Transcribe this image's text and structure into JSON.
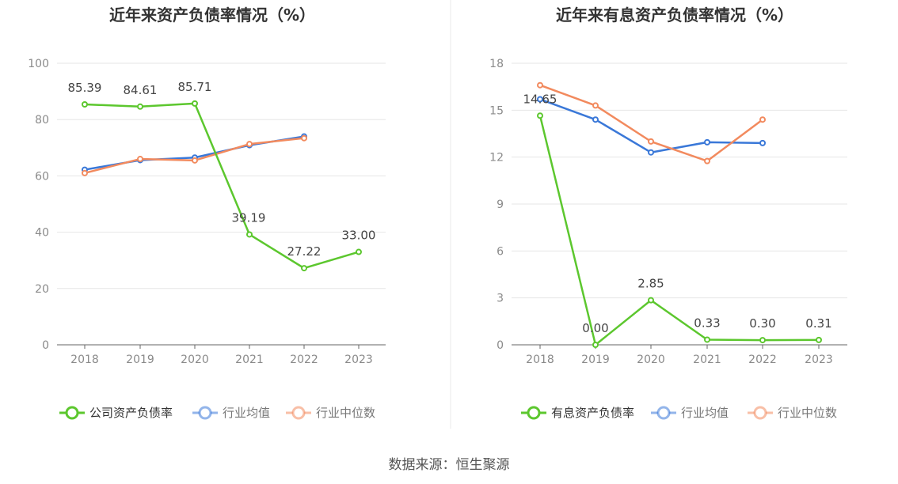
{
  "source_label": "数据来源：恒生聚源",
  "colors": {
    "company": "#5cc72e",
    "avg": "#3a78d8",
    "median": "#f28a5e"
  },
  "chart_data": [
    {
      "type": "line",
      "title": "近年来资产负债率情况（%）",
      "xlabel": "",
      "ylabel": "",
      "x": [
        "2018",
        "2019",
        "2020",
        "2021",
        "2022",
        "2023"
      ],
      "ylim": [
        0,
        100
      ],
      "yticks": [
        0,
        20,
        40,
        60,
        80,
        100
      ],
      "grid": true,
      "legend_position": "bottom",
      "series": [
        {
          "name": "公司资产负债率",
          "values": [
            85.39,
            84.61,
            85.71,
            39.19,
            27.22,
            33.0
          ],
          "labels": [
            "85.39",
            "84.61",
            "85.71",
            "39.19",
            "27.22",
            "33.00"
          ]
        },
        {
          "name": "行业均值",
          "values": [
            62.2,
            65.6,
            66.5,
            70.9,
            74.0,
            null
          ]
        },
        {
          "name": "行业中位数",
          "values": [
            61.0,
            66.0,
            65.5,
            71.3,
            73.4,
            null
          ]
        }
      ]
    },
    {
      "type": "line",
      "title": "近年来有息资产负债率情况（%）",
      "xlabel": "",
      "ylabel": "",
      "x": [
        "2018",
        "2019",
        "2020",
        "2021",
        "2022",
        "2023"
      ],
      "ylim": [
        0,
        18
      ],
      "yticks": [
        0,
        3,
        6,
        9,
        12,
        15,
        18
      ],
      "grid": true,
      "legend_position": "bottom",
      "series": [
        {
          "name": "有息资产负债率",
          "values": [
            14.65,
            0.0,
            2.85,
            0.33,
            0.3,
            0.31
          ],
          "labels": [
            "14.65",
            "0.00",
            "2.85",
            "0.33",
            "0.30",
            "0.31"
          ]
        },
        {
          "name": "行业均值",
          "values": [
            15.7,
            14.4,
            12.3,
            12.95,
            12.9,
            null
          ]
        },
        {
          "name": "行业中位数",
          "values": [
            16.6,
            15.3,
            13.0,
            11.75,
            14.4,
            null
          ]
        }
      ]
    }
  ]
}
